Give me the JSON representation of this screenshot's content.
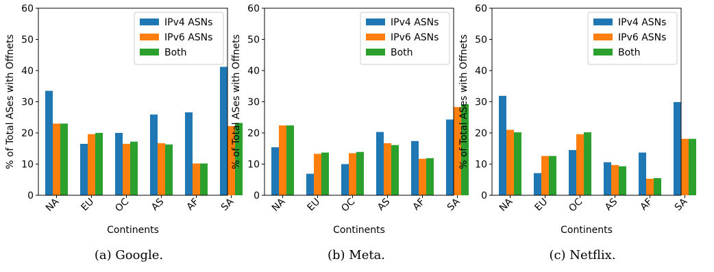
{
  "colors": {
    "ipv4": "#1f77b4",
    "ipv6": "#ff7f0e",
    "both": "#2ca02c"
  },
  "chart_data": [
    {
      "type": "bar",
      "caption": "(a) Google.",
      "categories": [
        "NA",
        "EU",
        "OC",
        "AS",
        "AF",
        "SA"
      ],
      "series": [
        {
          "name": "IPv4 ASNs",
          "values": [
            33.5,
            16.5,
            20.0,
            25.9,
            26.6,
            41.2
          ]
        },
        {
          "name": "IPv6 ASNs",
          "values": [
            23.0,
            19.6,
            16.5,
            16.7,
            10.2,
            22.2
          ]
        },
        {
          "name": "Both",
          "values": [
            23.0,
            20.0,
            17.2,
            16.3,
            10.2,
            23.2
          ]
        }
      ],
      "xlabel": "Continents",
      "ylabel": "% of Total ASes with Offnets",
      "ylim": [
        0,
        60
      ],
      "yticks": [
        0,
        10,
        20,
        30,
        40,
        50,
        60
      ],
      "legend": "top-right",
      "grid": false
    },
    {
      "type": "bar",
      "caption": "(b) Meta.",
      "categories": [
        "NA",
        "EU",
        "OC",
        "AS",
        "AF",
        "SA"
      ],
      "series": [
        {
          "name": "IPv4 ASNs",
          "values": [
            15.4,
            6.9,
            10.0,
            20.3,
            17.4,
            24.3
          ]
        },
        {
          "name": "IPv6 ASNs",
          "values": [
            22.4,
            13.3,
            13.5,
            16.7,
            11.7,
            28.3
          ]
        },
        {
          "name": "Both",
          "values": [
            22.4,
            13.7,
            13.9,
            16.1,
            11.9,
            29.2
          ]
        }
      ],
      "xlabel": "Continents",
      "ylabel": "% of Total ASes with Offnets",
      "ylim": [
        0,
        60
      ],
      "yticks": [
        0,
        10,
        20,
        30,
        40,
        50,
        60
      ],
      "legend": "top-right",
      "grid": false
    },
    {
      "type": "bar",
      "caption": "(c) Netflix.",
      "categories": [
        "NA",
        "EU",
        "OC",
        "AS",
        "AF",
        "SA"
      ],
      "series": [
        {
          "name": "IPv4 ASNs",
          "values": [
            31.9,
            7.1,
            14.5,
            10.6,
            13.7,
            29.9
          ]
        },
        {
          "name": "IPv6 ASNs",
          "values": [
            21.0,
            12.6,
            19.6,
            9.7,
            5.3,
            18.1
          ]
        },
        {
          "name": "Both",
          "values": [
            20.2,
            12.6,
            20.2,
            9.3,
            5.5,
            18.1
          ]
        }
      ],
      "xlabel": "Continents",
      "ylabel": "% of Total ASes with Offnets",
      "ylim": [
        0,
        60
      ],
      "yticks": [
        0,
        10,
        20,
        30,
        40,
        50,
        60
      ],
      "legend": "top-right",
      "grid": false
    }
  ]
}
